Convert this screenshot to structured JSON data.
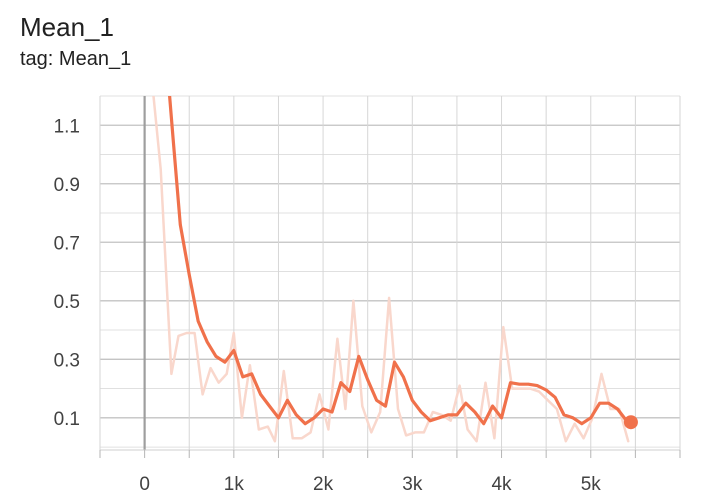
{
  "chart_data": {
    "type": "line",
    "title": "Mean_1",
    "subtitle": "tag: Mean_1",
    "xlim": [
      -500,
      6000
    ],
    "ylim": [
      -0.01,
      1.2
    ],
    "x_ticks": [
      0,
      1000,
      2000,
      3000,
      4000,
      5000
    ],
    "x_tick_labels": [
      "0",
      "1k",
      "2k",
      "3k",
      "4k",
      "5k"
    ],
    "y_ticks": [
      0.1,
      0.3,
      0.5,
      0.7,
      0.9,
      1.1
    ],
    "y_tick_labels": [
      "0.1",
      "0.3",
      "0.5",
      "0.7",
      "0.9",
      "1.1"
    ],
    "grid": true,
    "series": [
      {
        "style": "raw",
        "color": "#f9d7cc",
        "x": [
          100,
          180,
          300,
          380,
          470,
          560,
          650,
          740,
          830,
          920,
          1000,
          1090,
          1180,
          1280,
          1380,
          1460,
          1560,
          1660,
          1760,
          1860,
          1960,
          2060,
          2160,
          2250,
          2340,
          2440,
          2540,
          2640,
          2740,
          2840,
          2930,
          3030,
          3130,
          3230,
          3330,
          3430,
          3530,
          3620,
          3720,
          3820,
          3920,
          4020,
          4120,
          4220,
          4320,
          4420,
          4520,
          4620,
          4720,
          4820,
          4920,
          5020,
          5120,
          5220,
          5320,
          5420
        ],
        "y": [
          1.2,
          0.95,
          0.25,
          0.38,
          0.39,
          0.39,
          0.18,
          0.27,
          0.22,
          0.25,
          0.39,
          0.1,
          0.28,
          0.06,
          0.07,
          0.02,
          0.26,
          0.03,
          0.03,
          0.05,
          0.18,
          0.06,
          0.37,
          0.13,
          0.5,
          0.14,
          0.05,
          0.12,
          0.51,
          0.13,
          0.04,
          0.05,
          0.05,
          0.12,
          0.11,
          0.09,
          0.21,
          0.06,
          0.02,
          0.22,
          0.03,
          0.41,
          0.2,
          0.2,
          0.2,
          0.19,
          0.16,
          0.13,
          0.02,
          0.08,
          0.03,
          0.1,
          0.25,
          0.13,
          0.13,
          0.02
        ]
      },
      {
        "style": "smoothed",
        "color": "#f0714b",
        "x": [
          280,
          320,
          400,
          500,
          600,
          700,
          800,
          900,
          1000,
          1100,
          1200,
          1300,
          1400,
          1500,
          1600,
          1700,
          1800,
          1900,
          2000,
          2100,
          2200,
          2300,
          2400,
          2500,
          2600,
          2700,
          2800,
          2900,
          3000,
          3100,
          3200,
          3300,
          3400,
          3500,
          3600,
          3700,
          3800,
          3900,
          4000,
          4100,
          4200,
          4300,
          4400,
          4500,
          4600,
          4700,
          4800,
          4900,
          5000,
          5100,
          5200,
          5300,
          5400
        ],
        "y": [
          1.2,
          1.05,
          0.76,
          0.59,
          0.43,
          0.36,
          0.31,
          0.29,
          0.33,
          0.24,
          0.25,
          0.18,
          0.14,
          0.1,
          0.16,
          0.11,
          0.08,
          0.1,
          0.13,
          0.12,
          0.22,
          0.19,
          0.31,
          0.23,
          0.16,
          0.14,
          0.29,
          0.24,
          0.16,
          0.12,
          0.09,
          0.1,
          0.11,
          0.11,
          0.15,
          0.12,
          0.08,
          0.14,
          0.1,
          0.22,
          0.215,
          0.215,
          0.21,
          0.195,
          0.17,
          0.11,
          0.1,
          0.08,
          0.1,
          0.15,
          0.15,
          0.13,
          0.09
        ]
      }
    ],
    "last_point": {
      "x": 5450,
      "y": 0.085,
      "color": "#f0714b"
    }
  }
}
